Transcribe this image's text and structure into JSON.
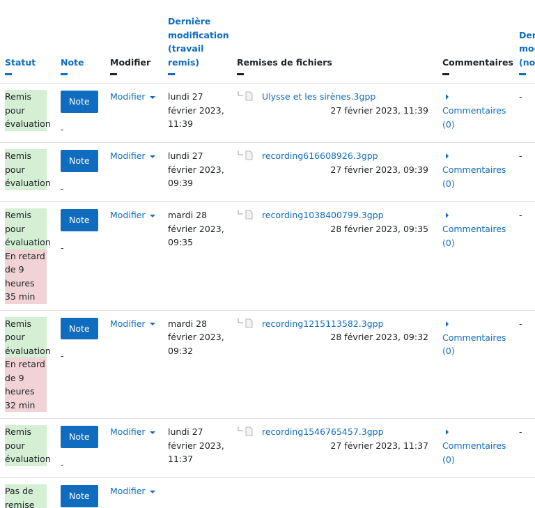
{
  "table": {
    "headers": [
      "Statut",
      "Note",
      "Modifier",
      "Dernière modification (travail remis)",
      "Remises de fichiers",
      "Commentaires",
      "Dernière modification (note)"
    ],
    "rows": [
      {
        "status": "Remis pour évaluation",
        "grade_button": "Note",
        "grade": "-",
        "edit": "Modifier",
        "modified": "lundi 27 février 2023, 11:39",
        "file": "Ulysse et les sirènes.3gpp",
        "file_date": "27 février 2023, 11:39",
        "comments": "Commentaires (0)",
        "grade_modified": "-"
      },
      {
        "status": "Remis pour évaluation",
        "grade_button": "Note",
        "grade": "-",
        "edit": "Modifier",
        "modified": "lundi 27 février 2023, 09:39",
        "file": "recording616608926.3gpp",
        "file_date": "27 février 2023, 09:39",
        "comments": "Commentaires (0)",
        "grade_modified": "-"
      },
      {
        "status": "Remis pour évaluation",
        "late": "En retard de 9 heures 35 min",
        "grade_button": "Note",
        "grade": "-",
        "edit": "Modifier",
        "modified": "mardi 28 février 2023, 09:35",
        "file": "recording1038400799.3gpp",
        "file_date": "28 février 2023, 09:35",
        "comments": "Commentaires (0)",
        "grade_modified": "-"
      },
      {
        "status": "Remis pour évaluation",
        "late": "En retard de 9 heures 32 min",
        "grade_button": "Note",
        "grade": "-",
        "edit": "Modifier",
        "modified": "mardi 28 février 2023, 09:32",
        "file": "recording1215113582.3gpp",
        "file_date": "28 février 2023, 09:32",
        "comments": "Commentaires (0)",
        "grade_modified": "-"
      },
      {
        "status": "Remis pour évaluation",
        "grade_button": "Note",
        "grade": "-",
        "edit": "Modifier",
        "modified": "lundi 27 février 2023, 11:37",
        "file": "recording1546765457.3gpp",
        "file_date": "27 février 2023, 11:37",
        "comments": "Commentaires (0)",
        "grade_modified": "-"
      },
      {
        "status": "Pas de remise",
        "grade_button": "Note",
        "edit": "Modifier"
      }
    ]
  }
}
